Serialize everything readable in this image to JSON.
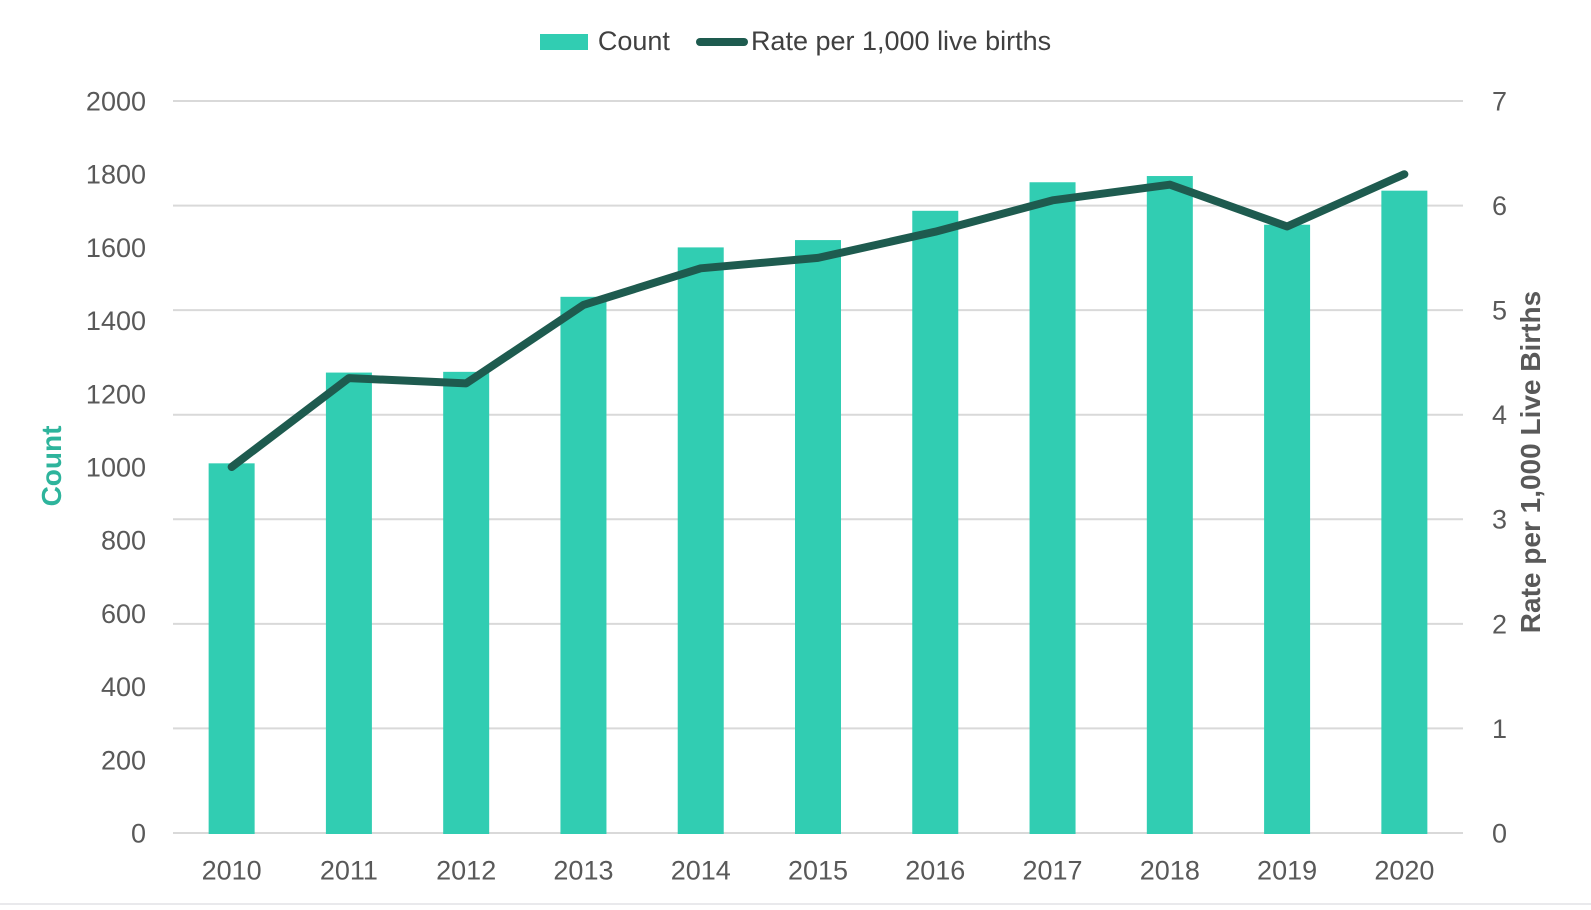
{
  "legend": {
    "items": [
      {
        "label": "Count",
        "swatch": "rect"
      },
      {
        "label": "Rate per 1,000 live births",
        "swatch": "line"
      }
    ]
  },
  "chart_data": {
    "type": "bar",
    "subtype": "combo bar + line, dual y-axes",
    "categories": [
      "2010",
      "2011",
      "2012",
      "2013",
      "2014",
      "2015",
      "2016",
      "2017",
      "2018",
      "2019",
      "2020"
    ],
    "series": [
      {
        "name": "Count",
        "type": "bar",
        "axis": "left",
        "color": "#31CDB2",
        "values": [
          1010,
          1258,
          1260,
          1465,
          1600,
          1620,
          1700,
          1778,
          1795,
          1662,
          1755
        ]
      },
      {
        "name": "Rate per 1,000 live births",
        "type": "line",
        "axis": "right",
        "color": "#1E5B4F",
        "values": [
          3.5,
          4.35,
          4.3,
          5.05,
          5.4,
          5.5,
          5.75,
          6.05,
          6.2,
          5.8,
          6.3
        ]
      }
    ],
    "title": "",
    "xlabel": "",
    "left_axis": {
      "title": "Count",
      "min": 0,
      "max": 2000,
      "step": 200,
      "ticks": [
        "0",
        "200",
        "400",
        "600",
        "800",
        "1000",
        "1200",
        "1400",
        "1600",
        "1800",
        "2000"
      ]
    },
    "right_axis": {
      "title": "Rate per 1,000 Live Births",
      "min": 0,
      "max": 7,
      "step": 1,
      "ticks": [
        "0",
        "1",
        "2",
        "3",
        "4",
        "5",
        "6",
        "7"
      ]
    },
    "grid": "horizontal gridlines at right-axis integers",
    "legend_position": "top-center"
  },
  "colors": {
    "bar": "#31CDB2",
    "line": "#1E5B4F",
    "gridline": "#D9D9D9",
    "tick_label": "#595959",
    "legend_text": "#404040",
    "left_axis_title": "#2EB49C",
    "right_axis_title": "#595959",
    "background": "#FFFFFF",
    "bottom_border": "#E9E9EC"
  }
}
